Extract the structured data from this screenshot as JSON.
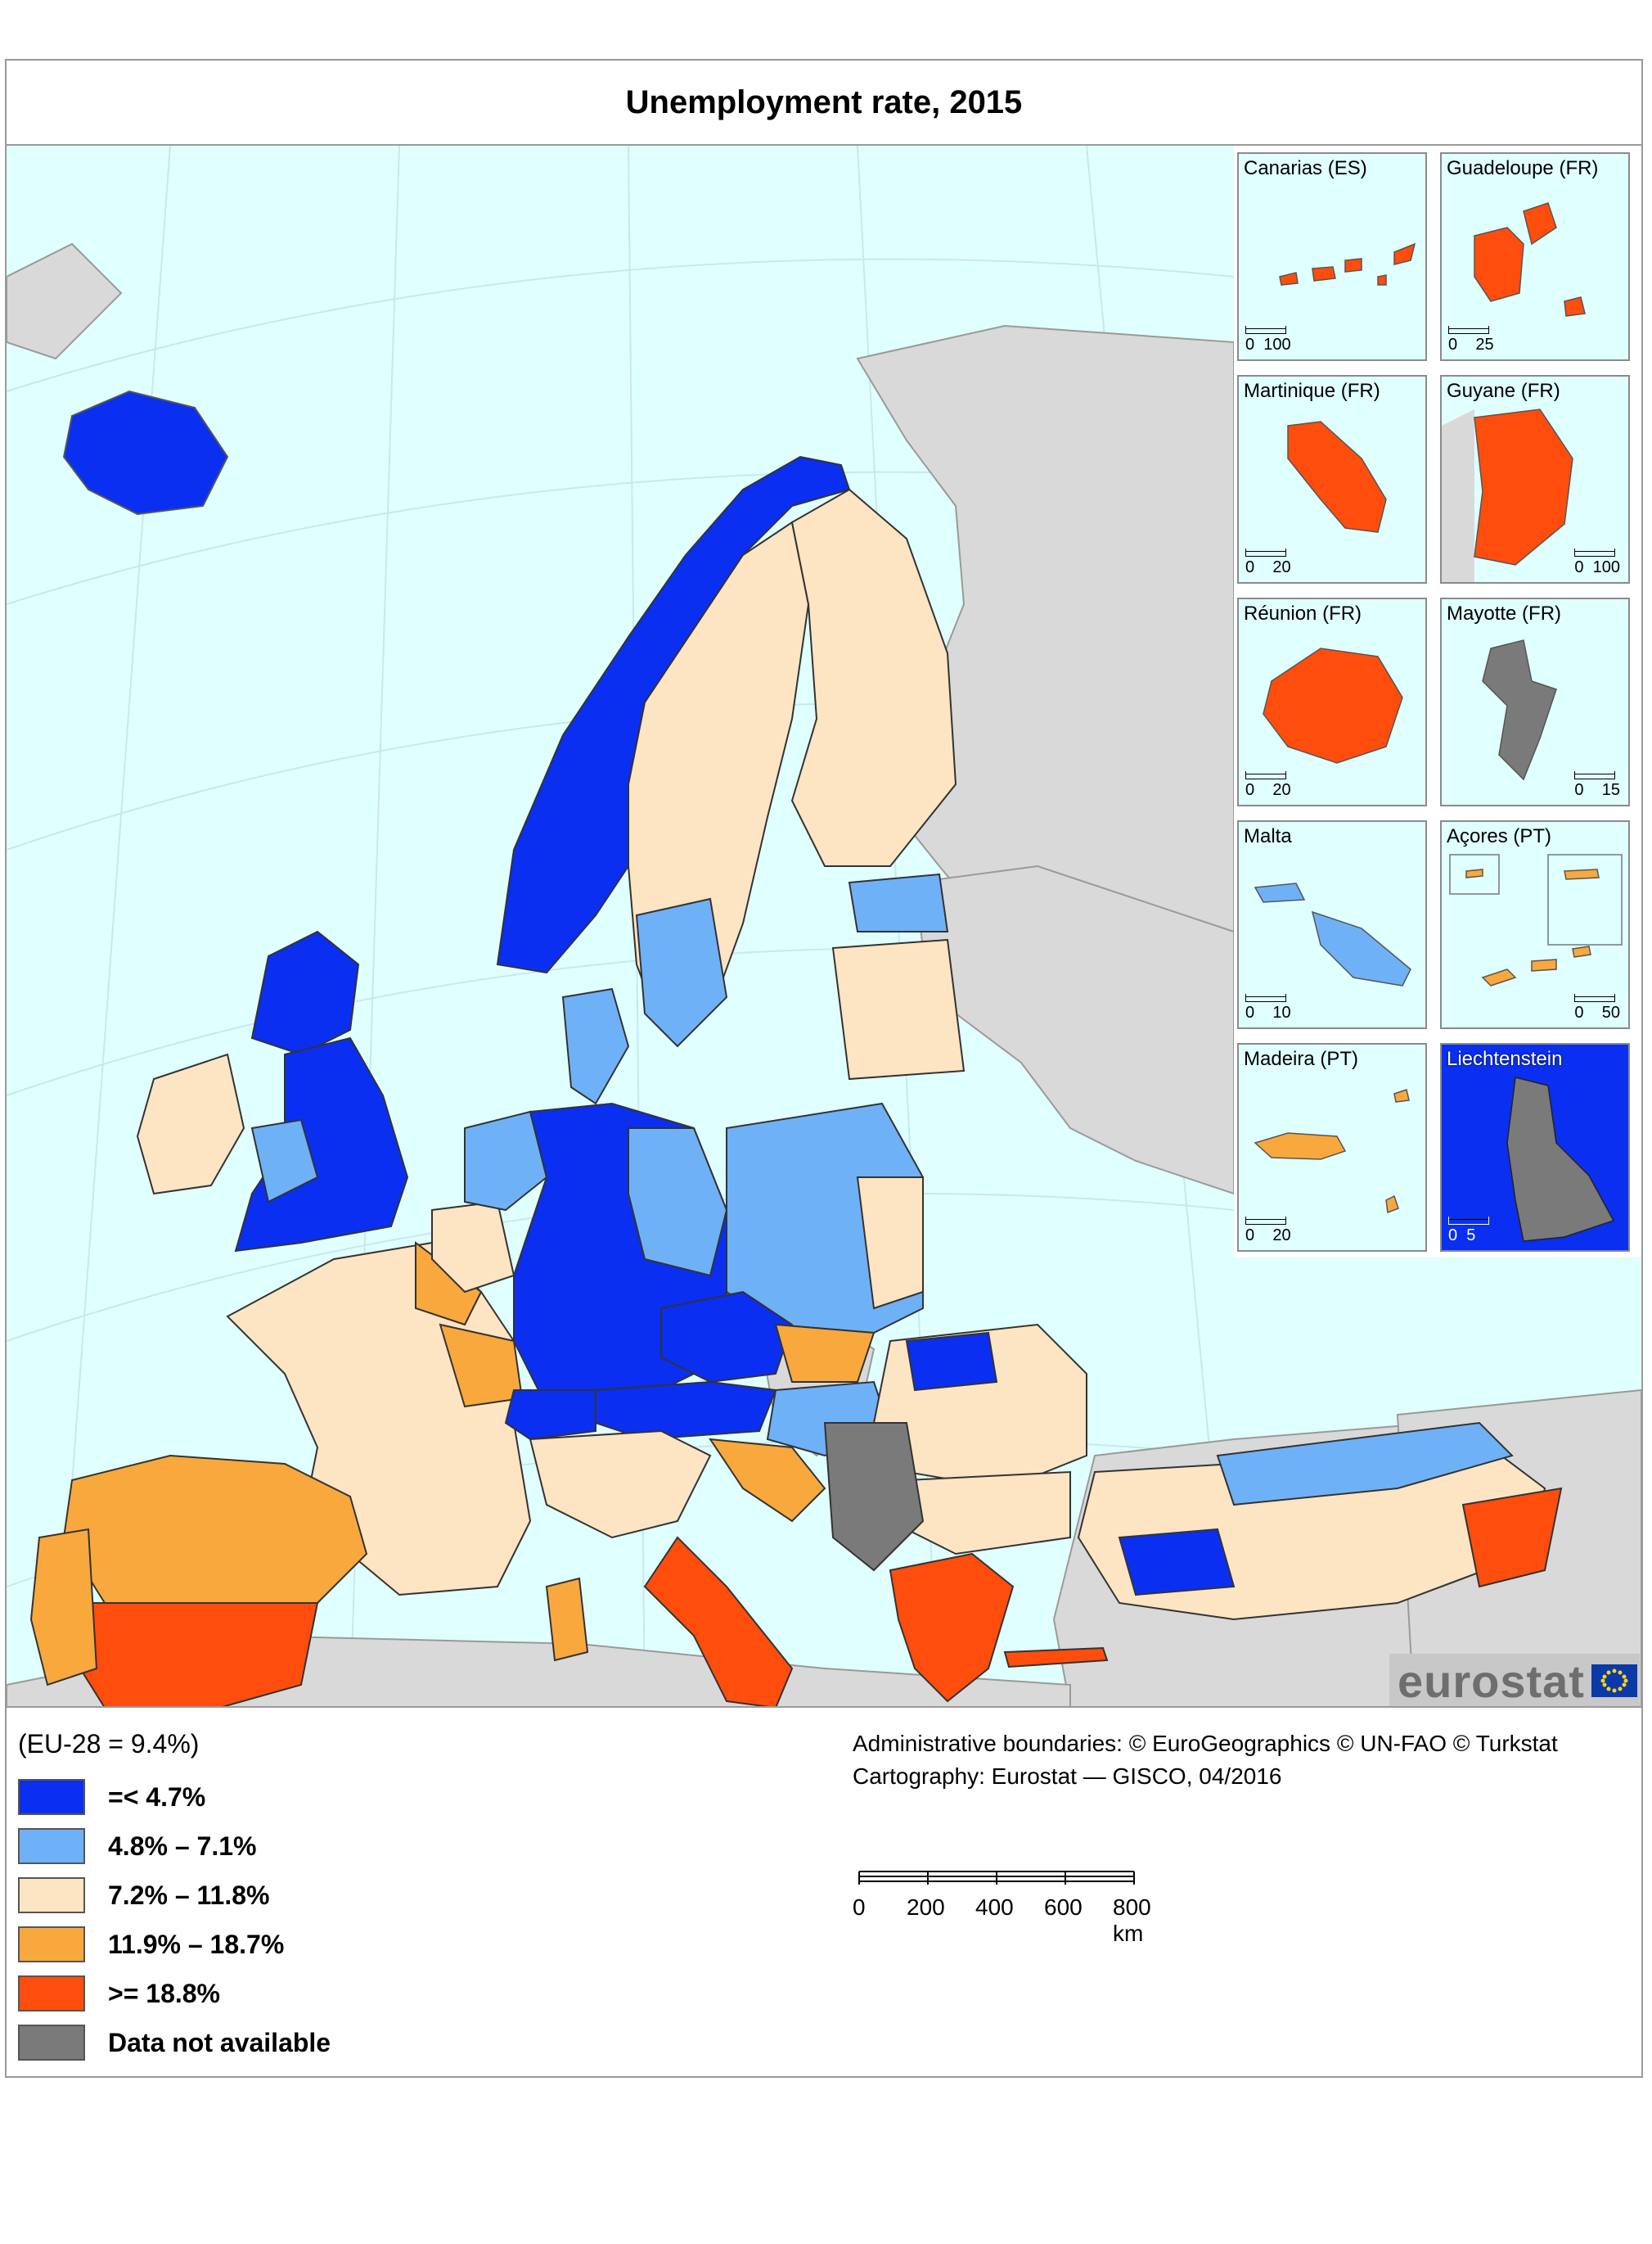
{
  "title": "Unemployment rate, 2015",
  "legend": {
    "eu_average": "(EU-28  =  9.4%)",
    "classes": [
      {
        "label": "=< 4.7%",
        "color": "#0a2ff0"
      },
      {
        "label": "4.8% – 7.1%",
        "color": "#6fb1f7"
      },
      {
        "label": "7.2% – 11.8%",
        "color": "#fde4c2"
      },
      {
        "label": "11.9% – 18.7%",
        "color": "#f9a83d"
      },
      {
        "label": ">= 18.8%",
        "color": "#ff4d0d"
      },
      {
        "label": "Data not available",
        "color": "#7a7a7a"
      }
    ]
  },
  "credits": {
    "line1": "Administrative boundaries: © EuroGeographics © UN-FAO © Turkstat",
    "line2": "Cartography: Eurostat — GISCO, 04/2016"
  },
  "main_scale": {
    "ticks": [
      "0",
      "200",
      "400",
      "600",
      "800 km"
    ]
  },
  "logo": {
    "text": "eurostat"
  },
  "insets": [
    {
      "label": "Canarias (ES)",
      "scale": [
        "0",
        "100"
      ],
      "fill": "#ff4d0d"
    },
    {
      "label": "Guadeloupe (FR)",
      "scale": [
        "0",
        "25"
      ],
      "fill": "#ff4d0d"
    },
    {
      "label": "Martinique (FR)",
      "scale": [
        "0",
        "20"
      ],
      "fill": "#ff4d0d"
    },
    {
      "label": "Guyane (FR)",
      "scale": [
        "0",
        "100"
      ],
      "fill": "#ff4d0d"
    },
    {
      "label": "Réunion (FR)",
      "scale": [
        "0",
        "20"
      ],
      "fill": "#ff4d0d"
    },
    {
      "label": "Mayotte (FR)",
      "scale": [
        "0",
        "15"
      ],
      "fill": "#7a7a7a"
    },
    {
      "label": "Malta",
      "scale": [
        "0",
        "10"
      ],
      "fill": "#6fb1f7"
    },
    {
      "label": "Açores (PT)",
      "scale": [
        "0",
        "50"
      ],
      "fill": "#f9a83d"
    },
    {
      "label": "Madeira (PT)",
      "scale": [
        "0",
        "20"
      ],
      "fill": "#f9a83d"
    },
    {
      "label": "Liechtenstein",
      "scale": [
        "0",
        "5"
      ],
      "fill": "#7a7a7a"
    }
  ],
  "colors": {
    "sea": "#e0ffff",
    "non_eu_land": "#d9d9d9",
    "c1": "#0a2ff0",
    "c2": "#6fb1f7",
    "c3": "#fde4c2",
    "c4": "#f9a83d",
    "c5": "#ff4d0d",
    "na": "#7a7a7a"
  }
}
